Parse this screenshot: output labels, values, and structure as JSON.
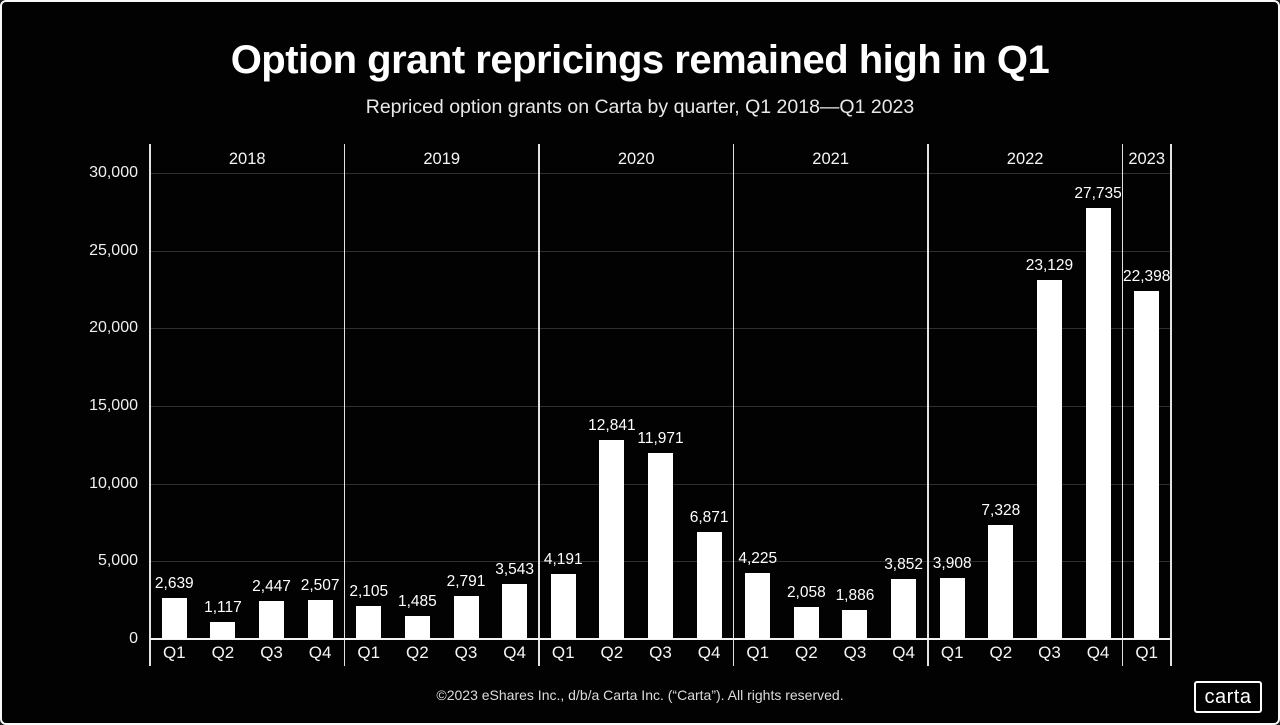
{
  "page": {
    "title": "Option grant repricings remained high in Q1",
    "subtitle": "Repriced option grants on Carta by quarter, Q1 2018—Q1 2023",
    "footer": "©2023 eShares Inc., d/b/a Carta Inc. (“Carta”). All rights reserved.",
    "logo_text": "carta",
    "background_color": "#020202"
  },
  "chart_data": {
    "type": "bar",
    "title": "Option grant repricings remained high in Q1",
    "subtitle": "Repriced option grants on Carta by quarter, Q1 2018—Q1 2023",
    "groups": [
      {
        "year": "2018",
        "categories": [
          "Q1",
          "Q2",
          "Q3",
          "Q4"
        ],
        "values": [
          2639,
          1117,
          2447,
          2507
        ]
      },
      {
        "year": "2019",
        "categories": [
          "Q1",
          "Q2",
          "Q3",
          "Q4"
        ],
        "values": [
          2105,
          1485,
          2791,
          3543
        ]
      },
      {
        "year": "2020",
        "categories": [
          "Q1",
          "Q2",
          "Q3",
          "Q4"
        ],
        "values": [
          4191,
          12841,
          11971,
          6871
        ]
      },
      {
        "year": "2021",
        "categories": [
          "Q1",
          "Q2",
          "Q3",
          "Q4"
        ],
        "values": [
          4225,
          2058,
          1886,
          3852
        ]
      },
      {
        "year": "2022",
        "categories": [
          "Q1",
          "Q2",
          "Q3",
          "Q4"
        ],
        "values": [
          3908,
          7328,
          23129,
          27735
        ]
      },
      {
        "year": "2023",
        "categories": [
          "Q1"
        ],
        "values": [
          22398
        ]
      }
    ],
    "y_ticks": [
      0,
      5000,
      10000,
      15000,
      20000,
      25000,
      30000
    ],
    "ylim": [
      0,
      32000
    ],
    "grid": "horizontal-faint",
    "legend": "none",
    "bar_color": "#ffffff",
    "grid_color": "#2e2e2e",
    "axis_color": "#e2e2e2",
    "label_color": "#ffffff"
  }
}
